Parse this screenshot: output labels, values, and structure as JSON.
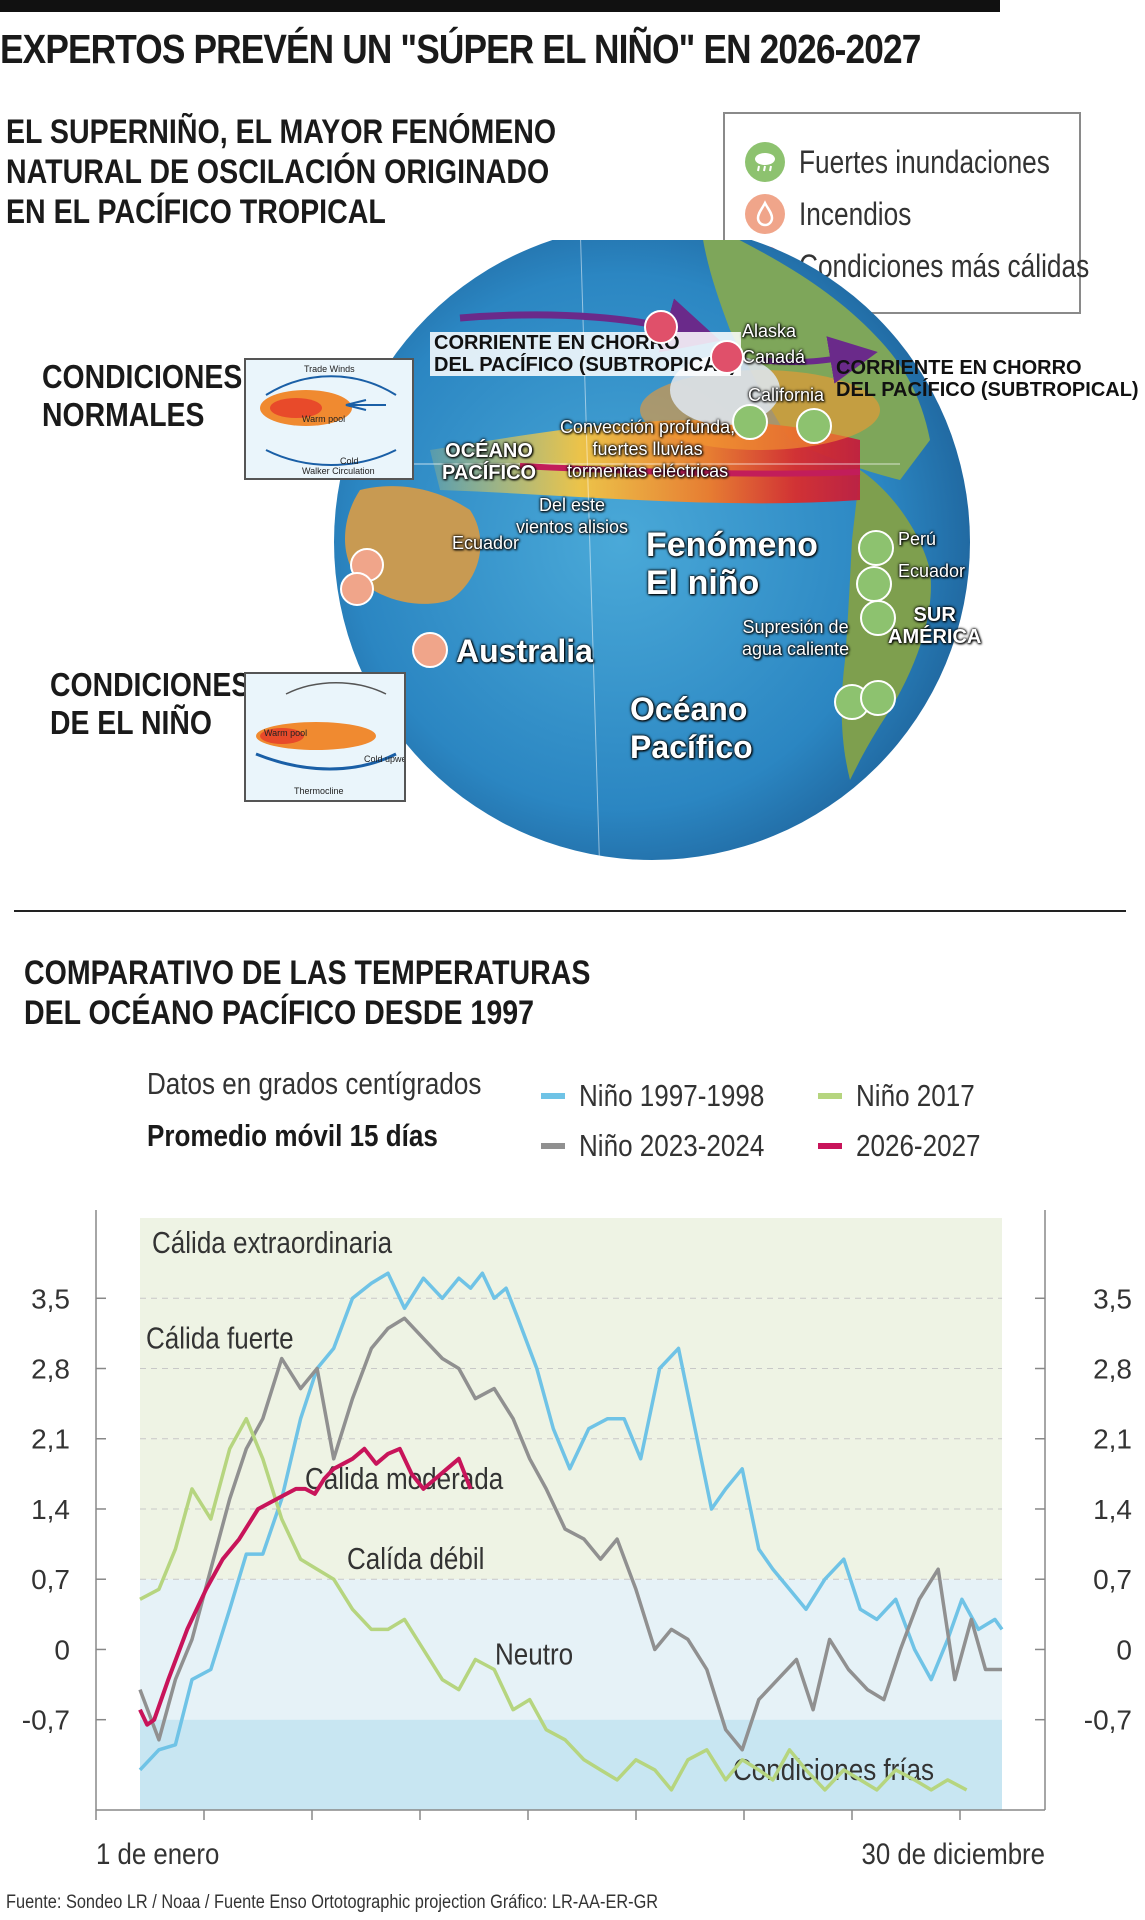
{
  "header": {
    "title": "EXPERTOS PREVÉN UN \"SÚPER EL NIÑO\" EN 2026-2027",
    "subtitle": [
      "EL SUPERNIÑO, EL MAYOR FENÓMENO",
      "NATURAL DE OSCILACIÓN ORIGINADO",
      "EN EL PACÍFICO TROPICAL"
    ]
  },
  "legend": [
    {
      "label": "Fuertes inundaciones",
      "icon": "rain-cloud-icon",
      "color": "#8dc26f"
    },
    {
      "label": "Incendios",
      "icon": "fire-drop-icon",
      "color": "#f0a58a"
    },
    {
      "label": "Condiciones más cálidas",
      "icon": "heat-drop-icon",
      "color": "#e0506a"
    }
  ],
  "insets": {
    "normal": {
      "label": [
        "CONDICIONES",
        "NORMALES"
      ],
      "captions": [
        "Trade Winds",
        "Warm pool",
        "Cold",
        "Walker Circulation"
      ]
    },
    "nino": {
      "label": [
        "CONDICIONES",
        "DE EL NIÑO"
      ],
      "captions": [
        "Warm pool",
        "Cold upwelling",
        "Thermocline"
      ]
    }
  },
  "map": {
    "jet_left": [
      "CORRIENTE EN CHORRO",
      "DEL PACÍFICO (SUBTROPICAL)"
    ],
    "jet_right": [
      "CORRIENTE EN CHORRO",
      "DEL PACÍFICO (SUBTROPICAL)"
    ],
    "alaska": "Alaska",
    "canada": "Canadá",
    "california": "California",
    "convection": [
      "Convección profunda,",
      "fuertes lluvias",
      "tormentas eléctricas"
    ],
    "ocean_top": [
      "OCÉANO",
      "PACÍFICO"
    ],
    "trade_winds": [
      "Del este",
      "vientos alisios"
    ],
    "equator": "Ecuador",
    "phenomenon": [
      "Fenómeno",
      "El niño"
    ],
    "peru": "Perú",
    "ecuador_country": "Ecuador",
    "south_america": [
      "SUR",
      "AMÉRICA"
    ],
    "suppression": [
      "Supresión de",
      "agua caliente"
    ],
    "australia": "Australia",
    "ocean_bottom": [
      "Océano",
      "Pacífico"
    ]
  },
  "section": {
    "title": [
      "COMPARATIVO DE LAS TEMPERATURAS",
      "DEL OCÉANO PACÍFICO DESDE 1997"
    ],
    "units_note": "Datos en grados centígrados",
    "avg_note": "Promedio móvil 15 días"
  },
  "colors": {
    "nino_1997": "#6fc3e6",
    "nino_2023": "#909090",
    "nino_2017": "#b6d57f",
    "nino_2026": "#c8145a",
    "band_warm": "#eef3e4",
    "band_neutral": "#e6f2f7",
    "band_cold": "#c8e6f2"
  },
  "chart_data": {
    "type": "line",
    "y_ticks": [
      "3,5",
      "2,8",
      "2,1",
      "1,4",
      "0,7",
      "0",
      "-0,7"
    ],
    "x_labels": [
      "1 de enero",
      "30 de diciembre"
    ],
    "x_range": [
      0,
      365
    ],
    "ylim": [
      -1.6,
      4.3
    ],
    "bands": [
      {
        "label": "Cálida extraordinaria",
        "from": 3.5,
        "to": 4.3
      },
      {
        "label": "Cálida fuerte",
        "from": 2.1,
        "to": 3.5
      },
      {
        "label": "Cálida moderada",
        "from": 1.4,
        "to": 2.1
      },
      {
        "label": "Calída débil",
        "from": 0.7,
        "to": 1.4
      },
      {
        "label": "Neutro",
        "from": -0.7,
        "to": 0.7
      },
      {
        "label": "Condiciones frías",
        "from": -1.6,
        "to": -0.7
      }
    ],
    "series": [
      {
        "name": "Niño 1997-1998",
        "key": "nino_1997",
        "x": [
          0,
          8,
          15,
          22,
          30,
          38,
          45,
          52,
          60,
          68,
          75,
          82,
          90,
          98,
          105,
          112,
          120,
          128,
          135,
          140,
          145,
          150,
          155,
          160,
          168,
          175,
          182,
          190,
          198,
          205,
          212,
          220,
          228,
          235,
          242,
          248,
          255,
          262,
          268,
          275,
          282,
          290,
          298,
          305,
          312,
          320,
          328,
          335,
          342,
          348,
          355,
          362,
          365
        ],
        "y": [
          -1.2,
          -1.0,
          -0.95,
          -0.3,
          -0.2,
          0.4,
          0.95,
          0.95,
          1.5,
          2.3,
          2.8,
          3.0,
          3.5,
          3.65,
          3.75,
          3.4,
          3.7,
          3.5,
          3.7,
          3.6,
          3.75,
          3.5,
          3.6,
          3.3,
          2.8,
          2.2,
          1.8,
          2.2,
          2.3,
          2.3,
          1.9,
          2.8,
          3.0,
          2.2,
          1.4,
          1.6,
          1.8,
          1.0,
          0.8,
          0.6,
          0.4,
          0.7,
          0.9,
          0.4,
          0.3,
          0.5,
          0.0,
          -0.3,
          0.1,
          0.5,
          0.2,
          0.3,
          0.2
        ]
      },
      {
        "name": "Niño 2023-2024",
        "key": "nino_2023",
        "x": [
          0,
          8,
          15,
          22,
          30,
          38,
          45,
          52,
          60,
          68,
          75,
          82,
          90,
          98,
          105,
          112,
          120,
          128,
          135,
          142,
          150,
          158,
          165,
          172,
          180,
          188,
          195,
          202,
          210,
          218,
          225,
          232,
          240,
          248,
          255,
          262,
          270,
          278,
          285,
          292,
          300,
          308,
          315,
          322,
          330,
          338,
          345,
          352,
          358,
          365
        ],
        "y": [
          -0.4,
          -0.9,
          -0.3,
          0.1,
          0.8,
          1.5,
          2.0,
          2.3,
          2.9,
          2.6,
          2.8,
          1.9,
          2.5,
          3.0,
          3.2,
          3.3,
          3.1,
          2.9,
          2.8,
          2.5,
          2.6,
          2.3,
          1.9,
          1.6,
          1.2,
          1.1,
          0.9,
          1.1,
          0.6,
          0.0,
          0.2,
          0.1,
          -0.2,
          -0.8,
          -1.0,
          -0.5,
          -0.3,
          -0.1,
          -0.6,
          0.1,
          -0.2,
          -0.4,
          -0.5,
          0.0,
          0.5,
          0.8,
          -0.3,
          0.3,
          -0.2,
          -0.2
        ]
      },
      {
        "name": "Niño 2017",
        "key": "nino_2017",
        "x": [
          0,
          8,
          15,
          22,
          30,
          38,
          45,
          52,
          60,
          68,
          75,
          82,
          90,
          98,
          105,
          112,
          120,
          128,
          135,
          142,
          150,
          158,
          165,
          172,
          180,
          188,
          195,
          202,
          210,
          218,
          225,
          232,
          240,
          248,
          255,
          262,
          268,
          275,
          282,
          290,
          298,
          305,
          312,
          320,
          328,
          335,
          342,
          350
        ],
        "y": [
          0.5,
          0.6,
          1.0,
          1.6,
          1.3,
          2.0,
          2.3,
          1.9,
          1.3,
          0.9,
          0.8,
          0.7,
          0.4,
          0.2,
          0.2,
          0.3,
          0.0,
          -0.3,
          -0.4,
          -0.1,
          -0.2,
          -0.6,
          -0.5,
          -0.8,
          -0.9,
          -1.1,
          -1.2,
          -1.3,
          -1.1,
          -1.2,
          -1.4,
          -1.1,
          -1.0,
          -1.3,
          -1.1,
          -1.2,
          -1.3,
          -1.0,
          -1.2,
          -1.4,
          -1.2,
          -1.3,
          -1.4,
          -1.2,
          -1.3,
          -1.4,
          -1.3,
          -1.4
        ]
      },
      {
        "name": "2026-2027",
        "key": "nino_2026",
        "x": [
          0,
          3,
          6,
          12,
          20,
          28,
          35,
          42,
          50,
          58,
          62,
          66,
          70,
          74,
          78,
          82,
          86,
          90,
          95,
          100,
          105,
          110,
          115,
          120,
          125,
          130,
          135,
          140
        ],
        "y": [
          -0.6,
          -0.75,
          -0.7,
          -0.3,
          0.2,
          0.6,
          0.9,
          1.1,
          1.4,
          1.5,
          1.55,
          1.6,
          1.6,
          1.55,
          1.7,
          1.8,
          1.85,
          1.9,
          2.0,
          1.85,
          1.95,
          2.0,
          1.75,
          1.6,
          1.7,
          1.8,
          1.9,
          1.6
        ]
      }
    ]
  },
  "footer": {
    "source": "Fuente: Sondeo LR / Noaa / Fuente Enso Ortotographic projection  Gráfico: LR-AA-ER-GR"
  }
}
